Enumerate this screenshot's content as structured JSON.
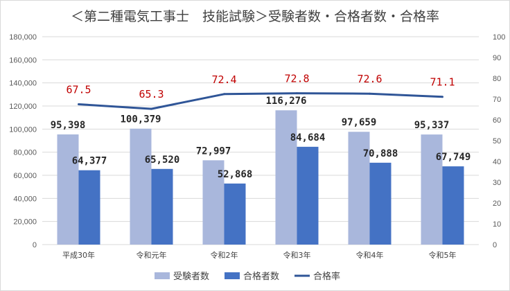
{
  "chart_data": {
    "type": "bar",
    "title": "＜第二種電気工事士　技能試験＞受験者数・合格者数・合格率",
    "categories": [
      "平成30年",
      "令和元年",
      "令和2年",
      "令和3年",
      "令和4年",
      "令和5年"
    ],
    "series": [
      {
        "name": "受験者数",
        "type": "bar",
        "axis": "left",
        "color": "#a9b7dc",
        "values": [
          95398,
          100379,
          72997,
          116276,
          97659,
          95337
        ],
        "labels": [
          "95,398",
          "100,379",
          "72,997",
          "116,276",
          "97,659",
          "95,337"
        ]
      },
      {
        "name": "合格者数",
        "type": "bar",
        "axis": "left",
        "color": "#4472c4",
        "values": [
          64377,
          65520,
          52868,
          84684,
          70888,
          67749
        ],
        "labels": [
          "64,377",
          "65,520",
          "52,868",
          "84,684",
          "70,888",
          "67,749"
        ]
      },
      {
        "name": "合格率",
        "type": "line",
        "axis": "right",
        "color": "#2f5597",
        "values": [
          67.5,
          65.3,
          72.4,
          72.8,
          72.6,
          71.1
        ],
        "labels": [
          "67.5",
          "65.3",
          "72.4",
          "72.8",
          "72.6",
          "71.1"
        ],
        "label_color": "#c00000"
      }
    ],
    "ylim_left": [
      0,
      180000
    ],
    "yticks_left": [
      "0",
      "20,000",
      "40,000",
      "60,000",
      "80,000",
      "100,000",
      "120,000",
      "140,000",
      "160,000",
      "180,000"
    ],
    "ylim_right": [
      0,
      100
    ],
    "yticks_right": [
      "0",
      "10",
      "20",
      "30",
      "40",
      "50",
      "60",
      "70",
      "80",
      "90",
      "100"
    ],
    "grid": true,
    "legend_position": "bottom"
  }
}
